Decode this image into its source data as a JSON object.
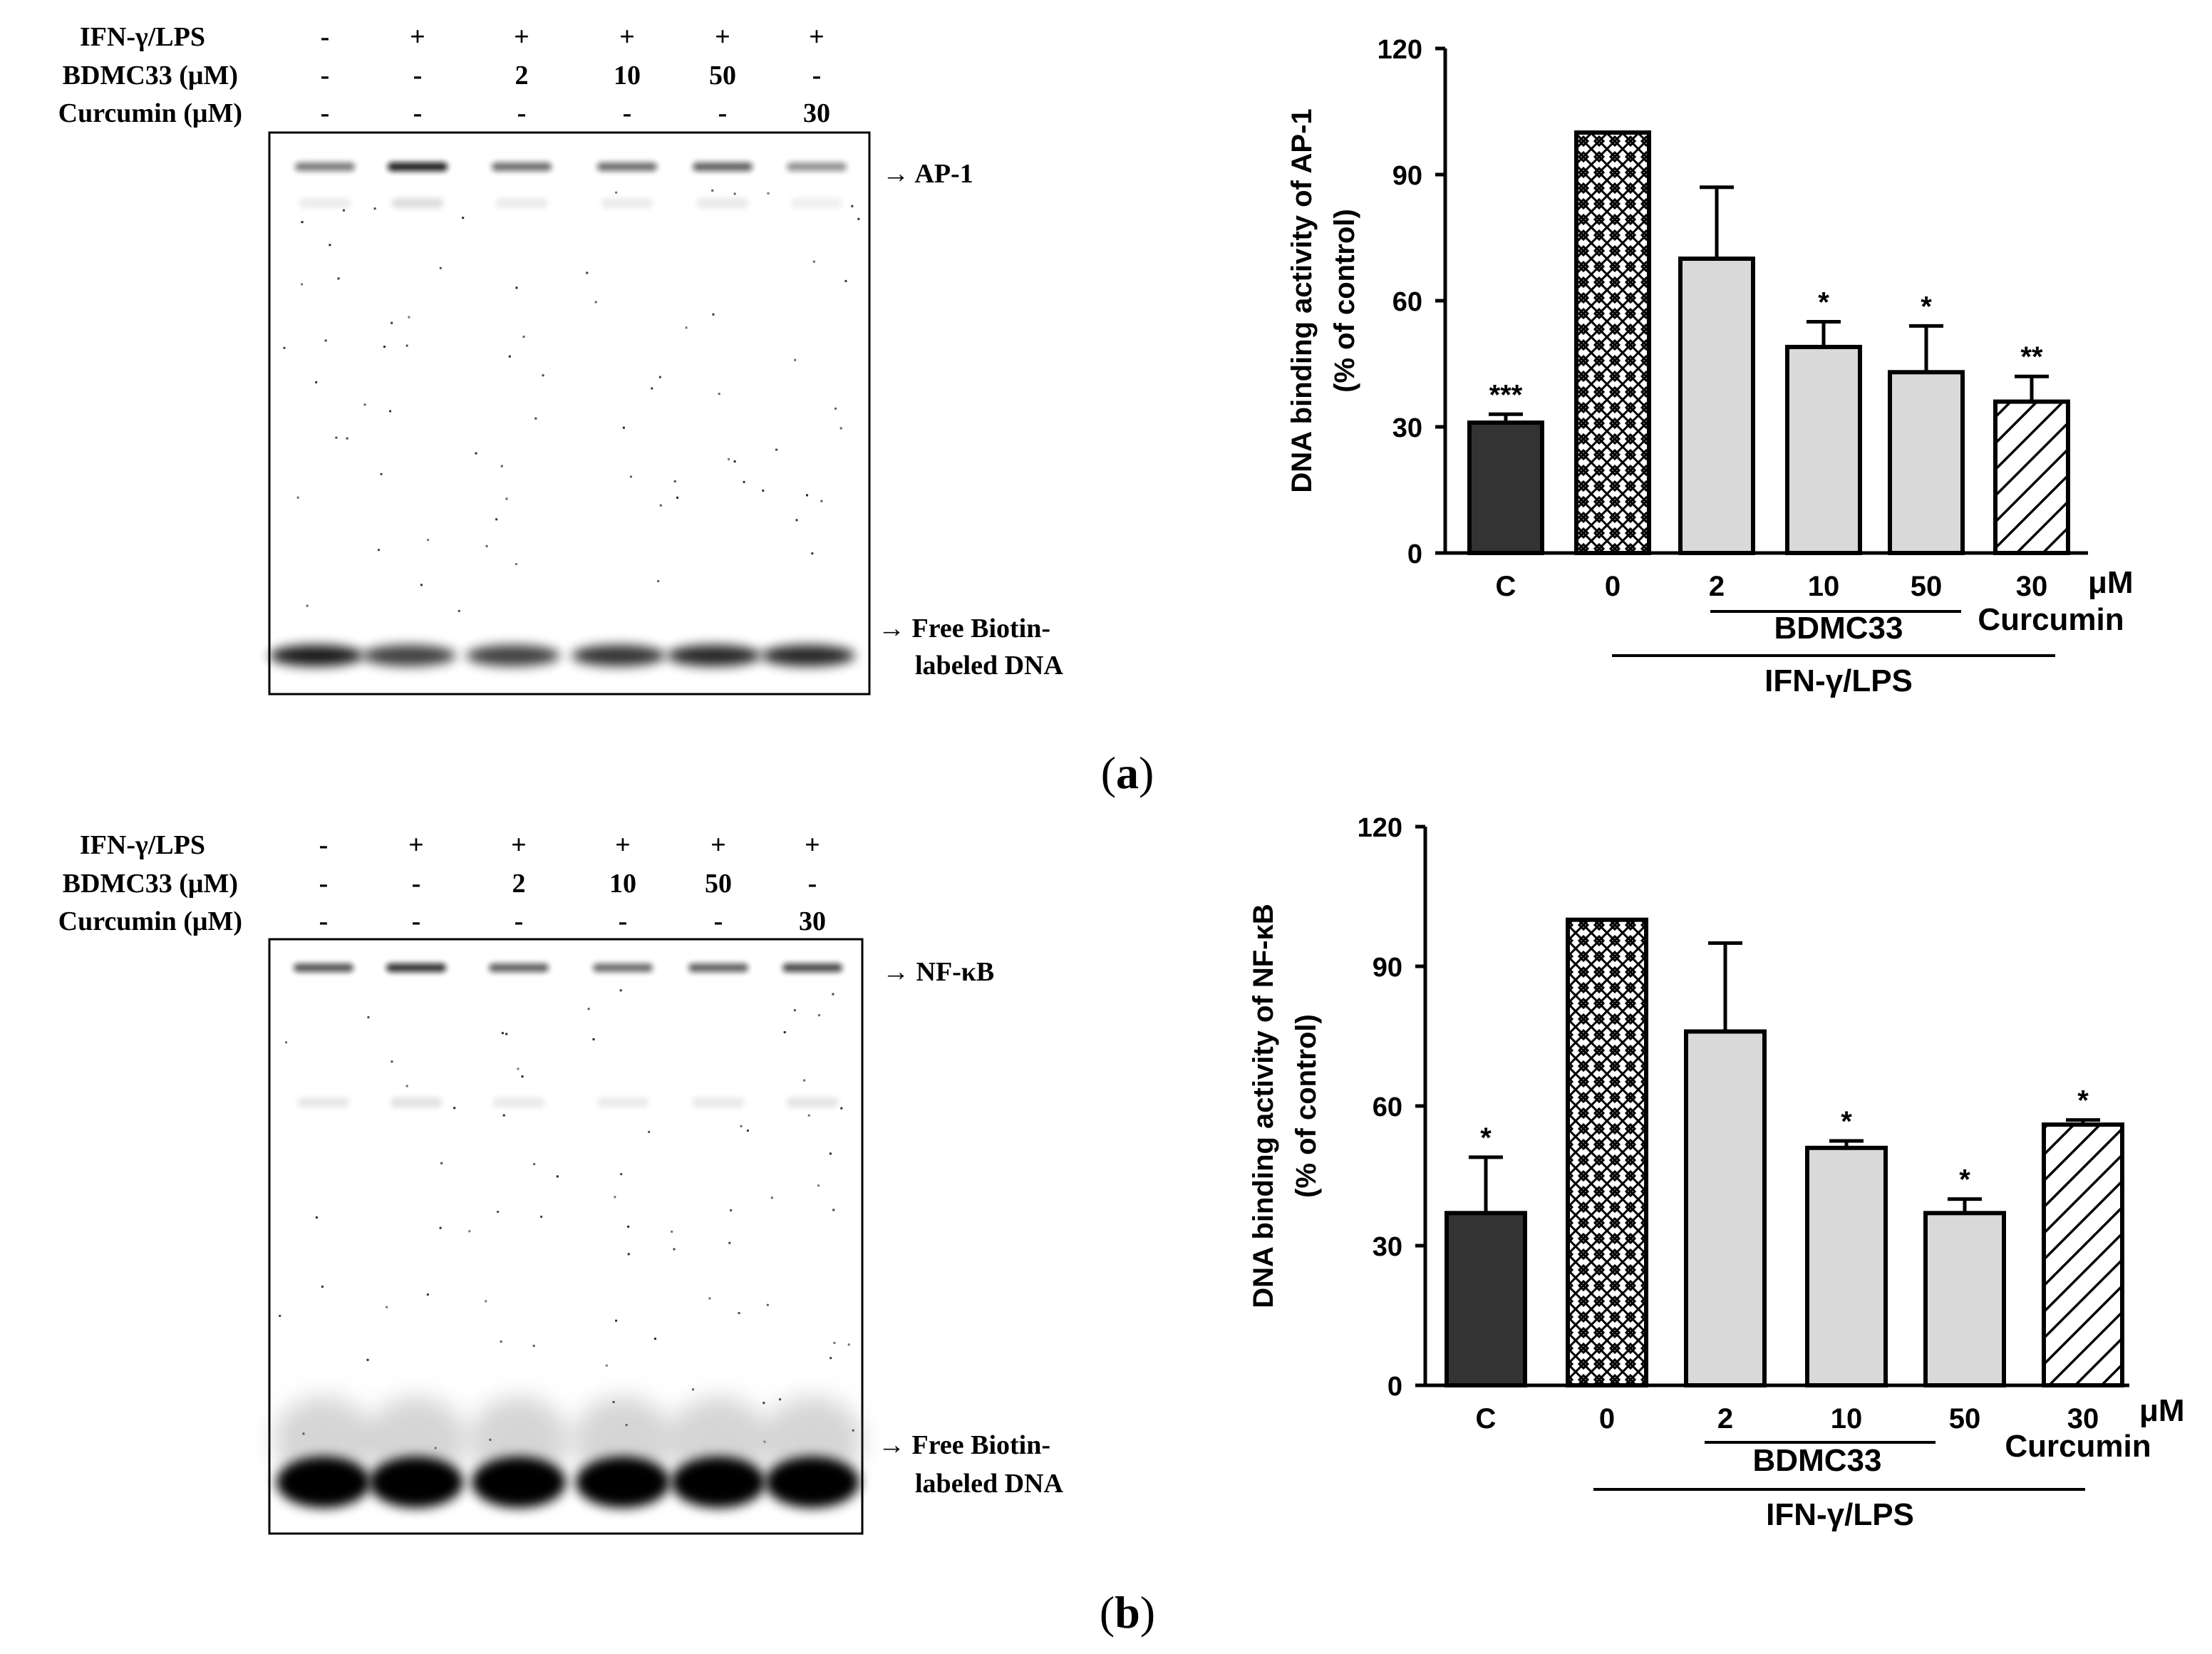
{
  "panels": [
    {
      "letter": "a",
      "gel": {
        "rows": [
          {
            "label": "IFN-γ/LPS",
            "values": [
              "-",
              "+",
              "+",
              "+",
              "+",
              "+"
            ]
          },
          {
            "label": "BDMC33 (μM)",
            "values": [
              "-",
              "-",
              "2",
              "10",
              "50",
              "-"
            ]
          },
          {
            "label": "Curcumin (μM)",
            "values": [
              "-",
              "-",
              "-",
              "-",
              "-",
              "30"
            ]
          }
        ],
        "target_label": "→ AP-1",
        "free_label_1": "→ Free Biotin-",
        "free_label_2": "labeled DNA",
        "top_band_intensity": [
          0.55,
          0.95,
          0.6,
          0.6,
          0.65,
          0.45
        ],
        "free_band_intensity": [
          0.9,
          0.75,
          0.75,
          0.8,
          0.85,
          0.85
        ]
      }
    },
    {
      "letter": "b",
      "gel": {
        "rows": [
          {
            "label": "IFN-γ/LPS",
            "values": [
              "-",
              "+",
              "+",
              "+",
              "+",
              "+"
            ]
          },
          {
            "label": "BDMC33 (μM)",
            "values": [
              "-",
              "-",
              "2",
              "10",
              "50",
              "-"
            ]
          },
          {
            "label": "Curcumin (μM)",
            "values": [
              "-",
              "-",
              "-",
              "-",
              "-",
              "30"
            ]
          }
        ],
        "target_label": "→ NF-κB",
        "free_label_1": "→ Free Biotin-",
        "free_label_2": "labeled DNA",
        "top_band_intensity": [
          0.7,
          0.85,
          0.65,
          0.6,
          0.65,
          0.75
        ],
        "free_band_intensity": [
          1,
          1,
          1,
          1,
          1,
          1
        ]
      }
    }
  ],
  "chart_data": [
    {
      "type": "bar",
      "panel": "a",
      "ylabel_line1": "DNA binding activity of AP-1",
      "ylabel_line2": "(% of control)",
      "ylim": [
        0,
        120
      ],
      "yticks": [
        0,
        30,
        60,
        90,
        120
      ],
      "categories": [
        "C",
        "0",
        "2",
        "10",
        "50",
        "30"
      ],
      "values": [
        31,
        100,
        70,
        49,
        43,
        36
      ],
      "errors": [
        2,
        0,
        17,
        6,
        11,
        6
      ],
      "significance": [
        "***",
        "",
        "",
        "*",
        "*",
        "**"
      ],
      "fills": [
        "dark",
        "crosshatch",
        "gray",
        "gray",
        "gray",
        "diagonal"
      ],
      "unit_label": "μM",
      "group_bdmc": "BDMC33",
      "group_curcumin": "Curcumin",
      "group_ifn": "IFN-γ/LPS"
    },
    {
      "type": "bar",
      "panel": "b",
      "ylabel_line1": "DNA binding activity of NF-κB",
      "ylabel_line2": "(% of control)",
      "ylim": [
        0,
        120
      ],
      "yticks": [
        0,
        30,
        60,
        90,
        120
      ],
      "categories": [
        "C",
        "0",
        "2",
        "10",
        "50",
        "30"
      ],
      "values": [
        37,
        100,
        76,
        51,
        37,
        56
      ],
      "errors": [
        12,
        0,
        19,
        1.5,
        3,
        1
      ],
      "significance": [
        "*",
        "",
        "",
        "*",
        "*",
        "*"
      ],
      "fills": [
        "dark",
        "crosshatch",
        "gray",
        "gray",
        "gray",
        "diagonal"
      ],
      "unit_label": "μM",
      "group_bdmc": "BDMC33",
      "group_curcumin": "Curcumin",
      "group_ifn": "IFN-γ/LPS"
    }
  ],
  "colors": {
    "dark_bar": "#333333",
    "gray_bar": "#d9d9d9",
    "ink": "#000000"
  }
}
